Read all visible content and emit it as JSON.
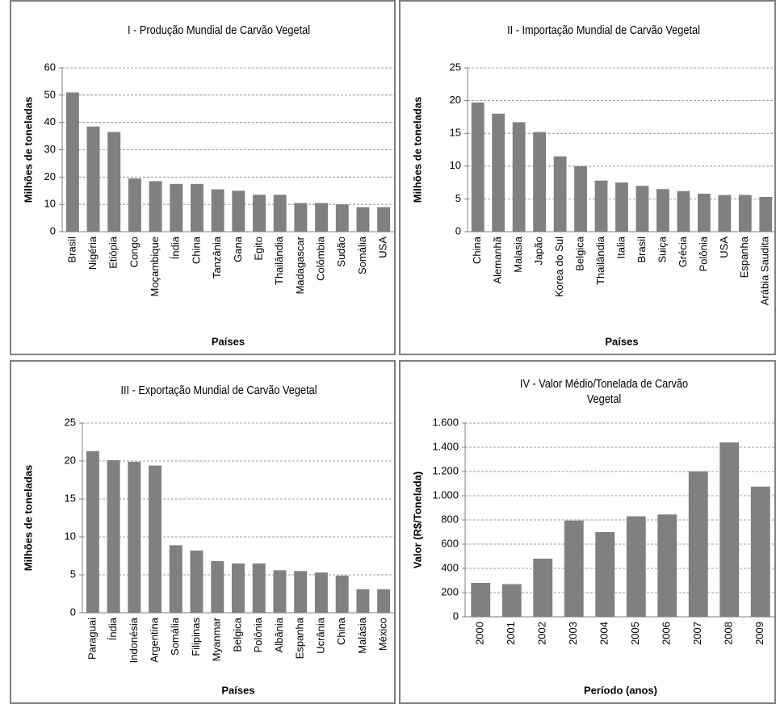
{
  "chart_data": [
    {
      "type": "bar",
      "title": "I - Produção Mundial de Carvão Vegetal",
      "y_label": "Milhões de toneladas",
      "x_label": "Países",
      "color": "#808080",
      "grid": true,
      "categories": [
        "Brasil",
        "Nigéria",
        "Etiópia",
        "Congo",
        "Moçambique",
        "Índia",
        "China",
        "Tanzânia",
        "Gana",
        "Egito",
        "Thailândia",
        "Madagascar",
        "Colômbia",
        "Sudão",
        "Somália",
        "USA"
      ],
      "values": [
        51,
        38.5,
        36.5,
        19.5,
        18.5,
        17.5,
        17.5,
        15.5,
        15,
        13.5,
        13.5,
        10.5,
        10.5,
        10,
        9,
        9
      ],
      "ylim": [
        0,
        60
      ],
      "yticks": [
        0,
        10,
        20,
        30,
        40,
        50,
        60
      ]
    },
    {
      "type": "bar",
      "title": "II - Importação Mundial de Carvão Vegetal",
      "y_label": "Milhões de toneladas",
      "x_label": "Países",
      "color": "#808080",
      "grid": true,
      "categories": [
        "China",
        "Alemanhã",
        "Malasia",
        "Japão",
        "Korea do Sul",
        "Belgica",
        "Thailândia",
        "Italia",
        "Brasil",
        "Suiça",
        "Grécia",
        "Polônia",
        "USA",
        "Espanha",
        "Arábia Saudita"
      ],
      "values": [
        19.7,
        18,
        16.7,
        15.2,
        11.5,
        10,
        7.8,
        7.5,
        7,
        6.5,
        6.2,
        5.8,
        5.6,
        5.6,
        5.3
      ],
      "ylim": [
        0,
        25
      ],
      "yticks": [
        0,
        5,
        10,
        15,
        20,
        25
      ]
    },
    {
      "type": "bar",
      "title": "III - Exportação Mundial de Carvão Vegetal",
      "y_label": "Milhões de toneladas",
      "x_label": "Países",
      "color": "#808080",
      "grid": true,
      "categories": [
        "Paraguai",
        "Índia",
        "Indonésia",
        "Argentina",
        "Somália",
        "Filipinas",
        "Myanmar",
        "Belgica",
        "Polônia",
        "Albânia",
        "Espanha",
        "Ucrânia",
        "China",
        "Malásia",
        "México"
      ],
      "values": [
        21.3,
        20.1,
        19.9,
        19.4,
        8.9,
        8.2,
        6.8,
        6.5,
        6.5,
        5.6,
        5.5,
        5.3,
        4.9,
        3.1,
        3.1
      ],
      "ylim": [
        0,
        25
      ],
      "yticks": [
        0,
        5,
        10,
        15,
        20,
        25
      ]
    },
    {
      "type": "bar",
      "title": "IV - Valor Médio/Tonelada de Carvão Vegetal",
      "y_label": "Valor  (R$/Tonelada)",
      "x_label": "Período (anos)",
      "color": "#808080",
      "grid": true,
      "categories": [
        "2000",
        "2001",
        "2002",
        "2003",
        "2004",
        "2005",
        "2006",
        "2007",
        "2008",
        "2009"
      ],
      "values": [
        280,
        270,
        480,
        795,
        700,
        830,
        845,
        1200,
        1440,
        1075
      ],
      "ylim": [
        0,
        1600
      ],
      "yticks": [
        0,
        200,
        400,
        600,
        800,
        {
          "value": 1000,
          "label": "1.000"
        },
        {
          "value": 1200,
          "label": "1.200"
        },
        {
          "value": 1400,
          "label": "1.400"
        },
        {
          "value": 1600,
          "label": "1.600"
        }
      ]
    }
  ]
}
